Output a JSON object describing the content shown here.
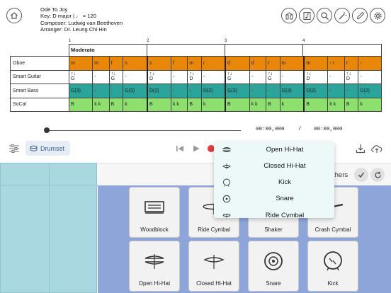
{
  "song": {
    "title": "Ode To Joy",
    "key": "Key: D major | ♩ = 120",
    "composer": "Composer: Ludwig van Beethoven",
    "arranger": "Arranger: Dr. Leung Chi Hin"
  },
  "toolbar": {
    "icons": [
      "home-icon",
      "mixer-icon",
      "score-icon",
      "search-icon",
      "magic-icon",
      "pencil-icon",
      "gear-icon"
    ]
  },
  "score": {
    "measure_numbers": [
      "1",
      "2",
      "3",
      "4"
    ],
    "tempo": "Moderato",
    "rows": [
      {
        "name": "Oboe",
        "cells": [
          "m",
          "m",
          "f",
          "s",
          "s",
          "f",
          "m",
          "r",
          "d",
          "d",
          "r",
          "m",
          "m",
          "- r",
          "r",
          "-"
        ]
      },
      {
        "name": "Smart Guitar",
        "cells": [
          "↑↓ G",
          "-",
          "↑↓ G",
          "-",
          "↑↓ D",
          "-",
          "↑↓ D",
          "-",
          "↑↓ G",
          "-",
          "↑↓ G",
          "-",
          "↑↓ D",
          "-",
          "↑↓ D",
          "-"
        ]
      },
      {
        "name": "Smart Bass",
        "cells": [
          "G(3)",
          "-",
          "-",
          "G(3)",
          "D(2)",
          "-",
          "-",
          "D(2)",
          "G(3)",
          "-",
          "-",
          "G(3)",
          "D(2)",
          "-",
          "-",
          "D(2)"
        ]
      },
      {
        "name": "SoCal",
        "cells": [
          "B",
          "k k",
          "B",
          "k",
          "B",
          "k k",
          "B",
          "k",
          "B",
          "k k",
          "B",
          "k",
          "B",
          "k k",
          "B",
          "k"
        ]
      }
    ],
    "colors": {
      "oboe": "#e8870a",
      "bass": "#2ba49b",
      "socal": "#8ee06e"
    }
  },
  "playback": {
    "current_time": "00:00,000",
    "separator": "/",
    "total_time": "00:00,000",
    "progress": 0
  },
  "controls": {
    "instrument_button": "Drumset"
  },
  "drum_top": {
    "others_label": "thers"
  },
  "pads": [
    {
      "label": "Woodblock",
      "icon": "woodblock-icon"
    },
    {
      "label": "Ride Cymbal",
      "icon": "ride-cymbal-icon"
    },
    {
      "label": "Shaker",
      "icon": "shaker-icon"
    },
    {
      "label": "Crash Cymbal",
      "icon": "crash-cymbal-icon"
    },
    {
      "label": "Open Hi-Hat",
      "icon": "open-hihat-icon"
    },
    {
      "label": "Closed Hi-Hat",
      "icon": "closed-hihat-icon"
    },
    {
      "label": "Snare",
      "icon": "snare-icon"
    },
    {
      "label": "Kick",
      "icon": "kick-icon"
    }
  ],
  "dropdown": {
    "items": [
      {
        "label": "Open Hi-Hat",
        "icon": "open-hihat-icon"
      },
      {
        "label": "Closed Hi-Hat",
        "icon": "closed-hihat-icon"
      },
      {
        "label": "Kick",
        "icon": "kick-icon"
      },
      {
        "label": "Snare",
        "icon": "snare-icon"
      },
      {
        "label": "Ride Cymbal",
        "icon": "ride-cymbal-icon"
      }
    ]
  }
}
